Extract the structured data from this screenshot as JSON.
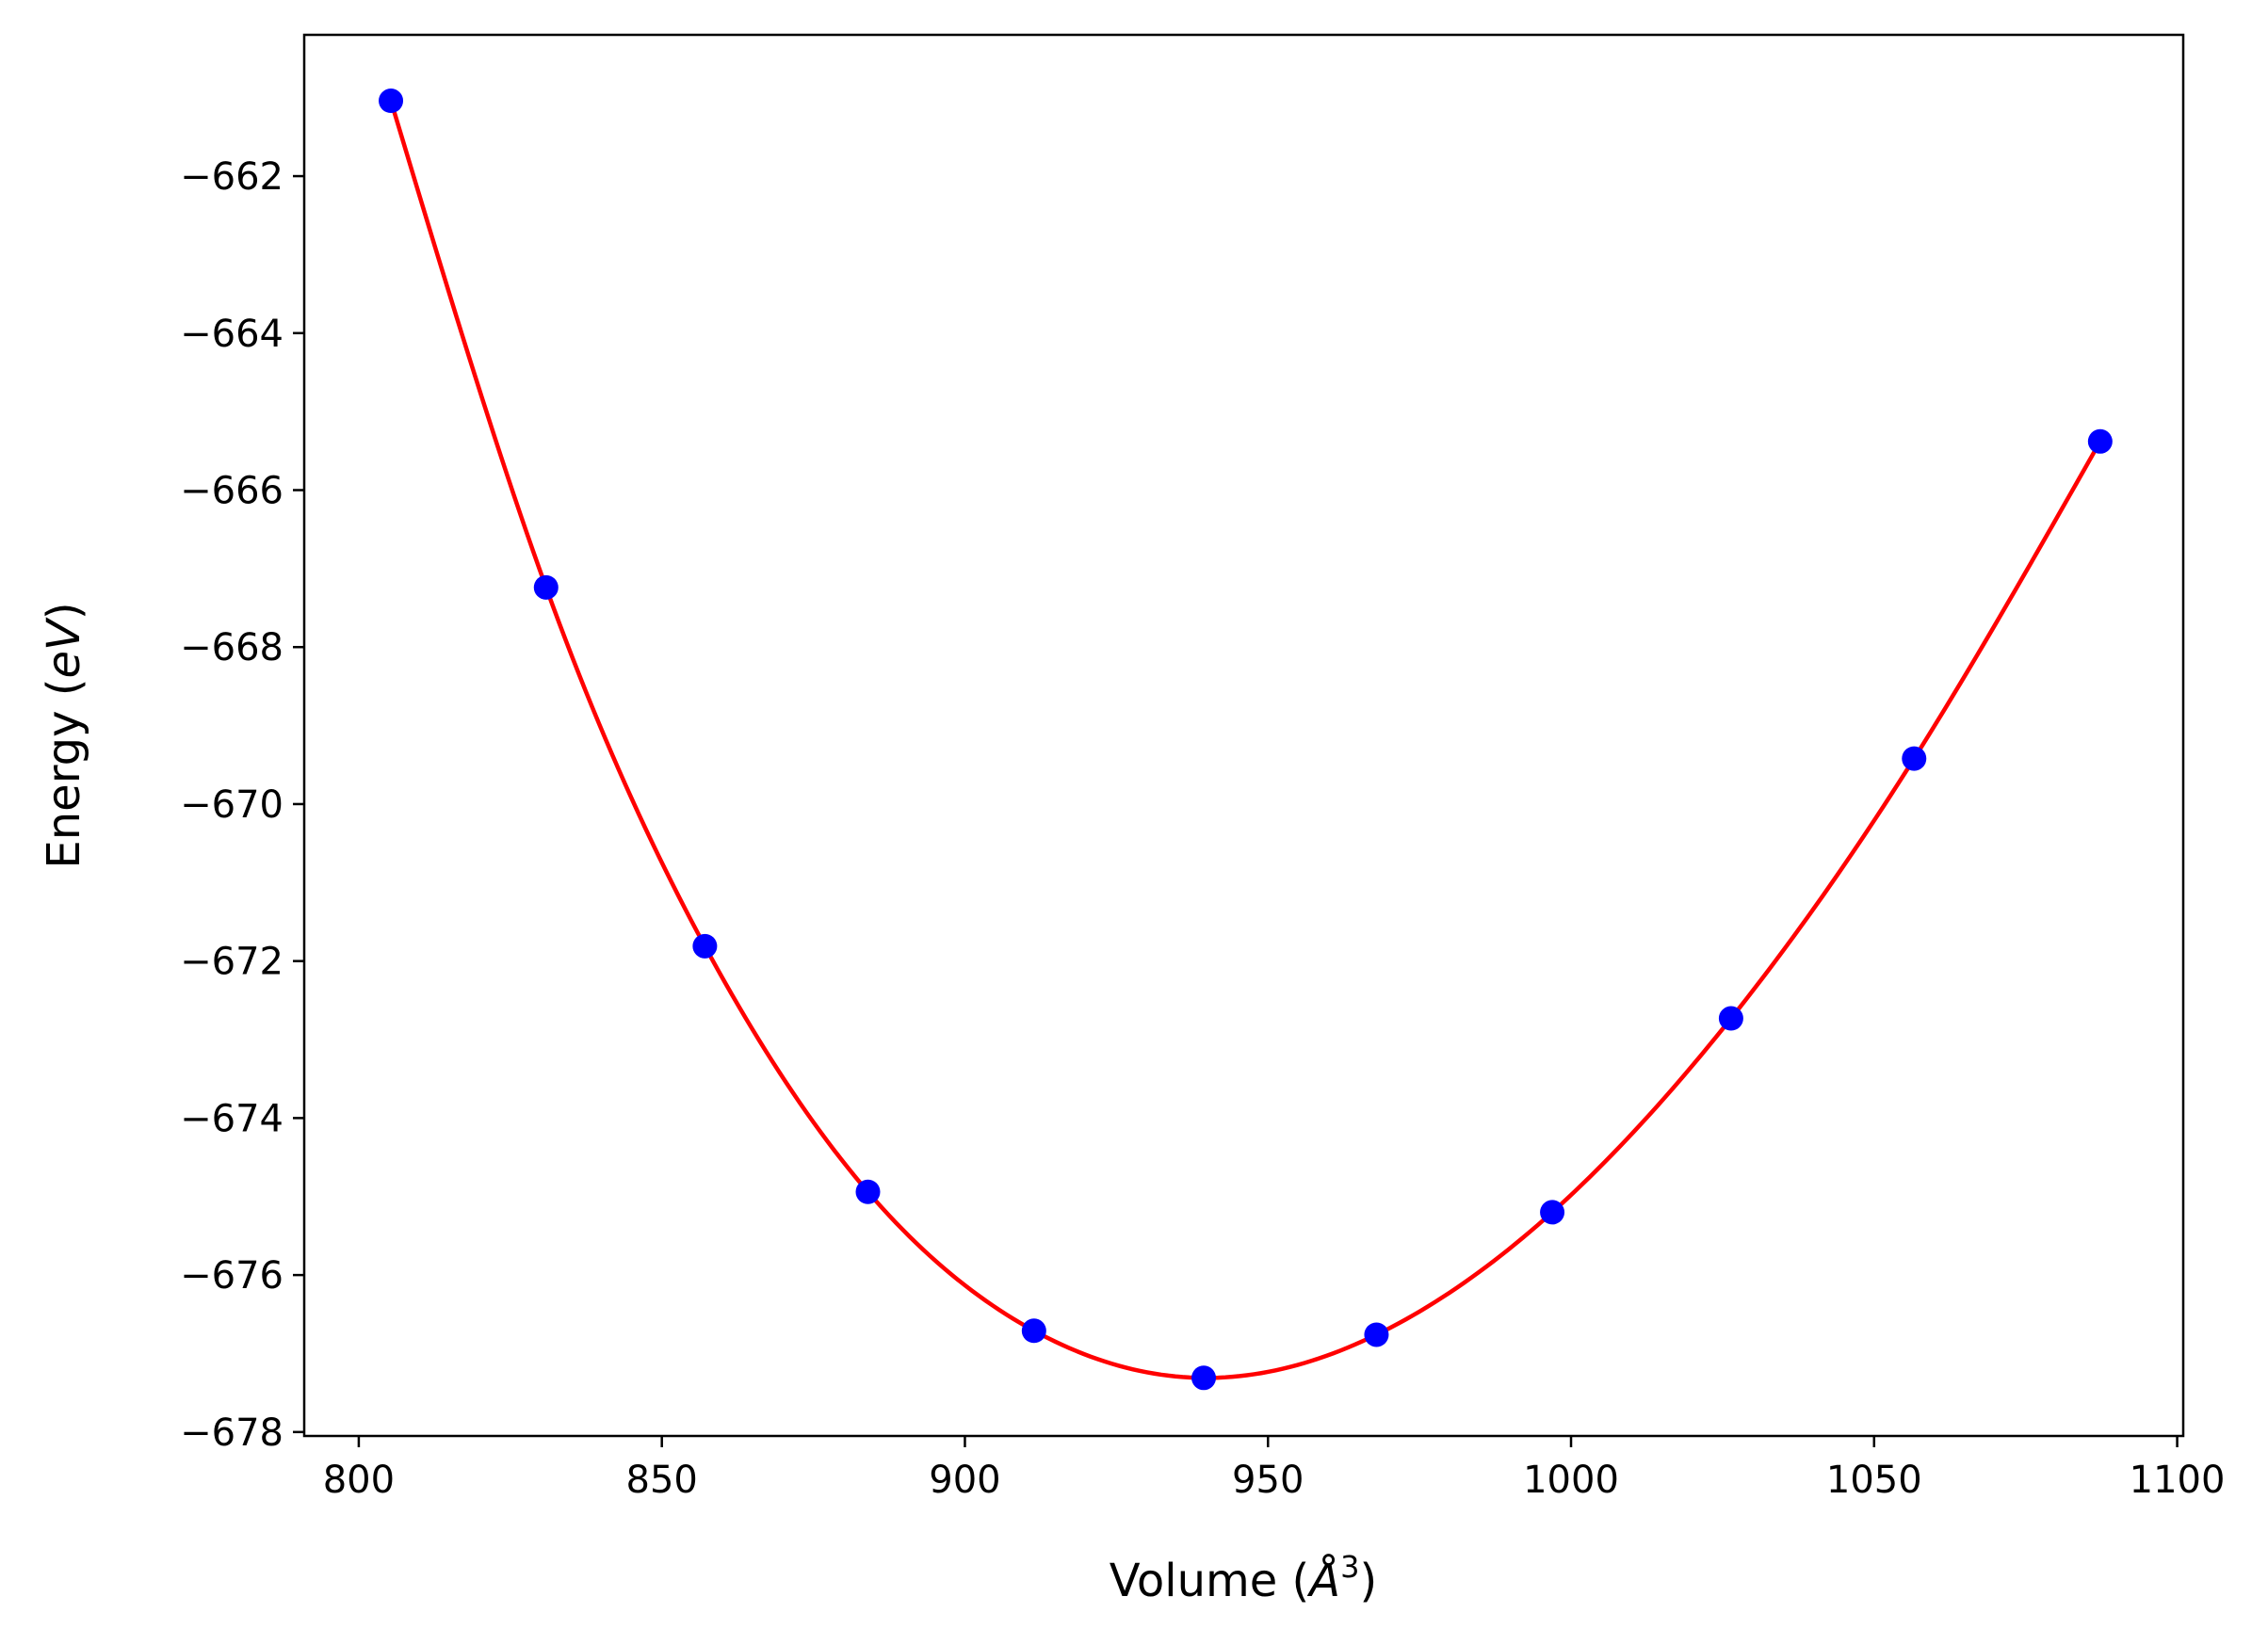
{
  "chart_data": {
    "type": "scatter",
    "title": "",
    "xlabel": {
      "prefix": "Volume (",
      "symbol": "Å",
      "superscript": "3",
      "suffix": ")"
    },
    "ylabel": {
      "prefix": "Energy (",
      "symbol": "eV",
      "suffix": ")"
    },
    "xlim": [
      791,
      1101
    ],
    "ylim": [
      -678.05,
      -660.2
    ],
    "xticks": [
      800,
      850,
      900,
      950,
      1000,
      1050,
      1100
    ],
    "yticks": [
      -662,
      -664,
      -666,
      -668,
      -670,
      -672,
      -674,
      -676,
      -678
    ],
    "xtick_labels": [
      "800",
      "850",
      "900",
      "950",
      "1000",
      "1050",
      "1100"
    ],
    "ytick_labels": [
      "−662",
      "−664",
      "−666",
      "−668",
      "−670",
      "−672",
      "−674",
      "−676",
      "−678"
    ],
    "grid": false,
    "series": [
      {
        "kind": "points",
        "color": "#0000ff",
        "x": [
          805.3,
          830.9,
          857.1,
          884.0,
          911.4,
          939.4,
          967.9,
          996.9,
          1026.4,
          1056.6,
          1087.3
        ],
        "y": [
          -661.04,
          -667.24,
          -671.81,
          -674.94,
          -676.71,
          -677.31,
          -676.76,
          -675.2,
          -672.73,
          -669.42,
          -665.38
        ]
      },
      {
        "kind": "fit-curve",
        "color": "#ff0000"
      }
    ]
  }
}
